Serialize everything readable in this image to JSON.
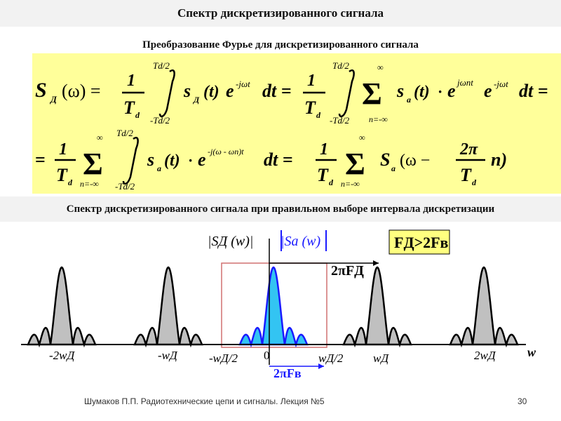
{
  "slide": {
    "title": "Спектр дискретизированного сигнала",
    "subtitle": "Преобразование Фурье для дискретизированного сигнала",
    "section_title": "Спектр дискретизированного сигнала при правильном выборе интервала дискретизации",
    "footer": "Шумаков П.П. Радиотехнические цепи и сигналы. Лекция №5",
    "page_number": "30"
  },
  "formula": {
    "lhs_S": "S",
    "lhs_sub": "Д",
    "omega_arg": "(ω) =",
    "one": "1",
    "Td": "T",
    "Td_sub": "d",
    "upper_limit": "Td/2",
    "lower_limit": "-Td/2",
    "s": "s",
    "sD_sub": "Д",
    "t_arg": "(t)",
    "exp1": "e",
    "exp1_sup": "-jωt",
    "dt": "dt =",
    "sum_top": "∞",
    "sum_bottom": "n=-∞",
    "sa_sub": "a",
    "mid_exp": "e",
    "mid_exp_sup": "jωnt",
    "end_dt": "dt =",
    "eq": "=",
    "line2_exp_sup": "-j(ω - ωn)t",
    "two_pi": "2π",
    "n_term": "n)",
    "omega_minus": "(ω −"
  },
  "diagram": {
    "label_SD": "|SД (w)|",
    "label_Sa": "|Sa (w)",
    "condition": "FД>2Fв",
    "bracket_top": "2πFД",
    "bracket_bottom": "2πFв",
    "axis_w": "w",
    "tick_labels": [
      "-2wД",
      "-wД",
      "-wД/2",
      "0",
      "wД/2",
      "wД",
      "2wД"
    ],
    "colors": {
      "baseband_fill": "#33c4f2",
      "baseband_stroke": "#1a1aff",
      "replica_fill": "#c0c0c0",
      "condition_bg": "#ffff80",
      "formula_bg": "#ffff9a"
    }
  }
}
